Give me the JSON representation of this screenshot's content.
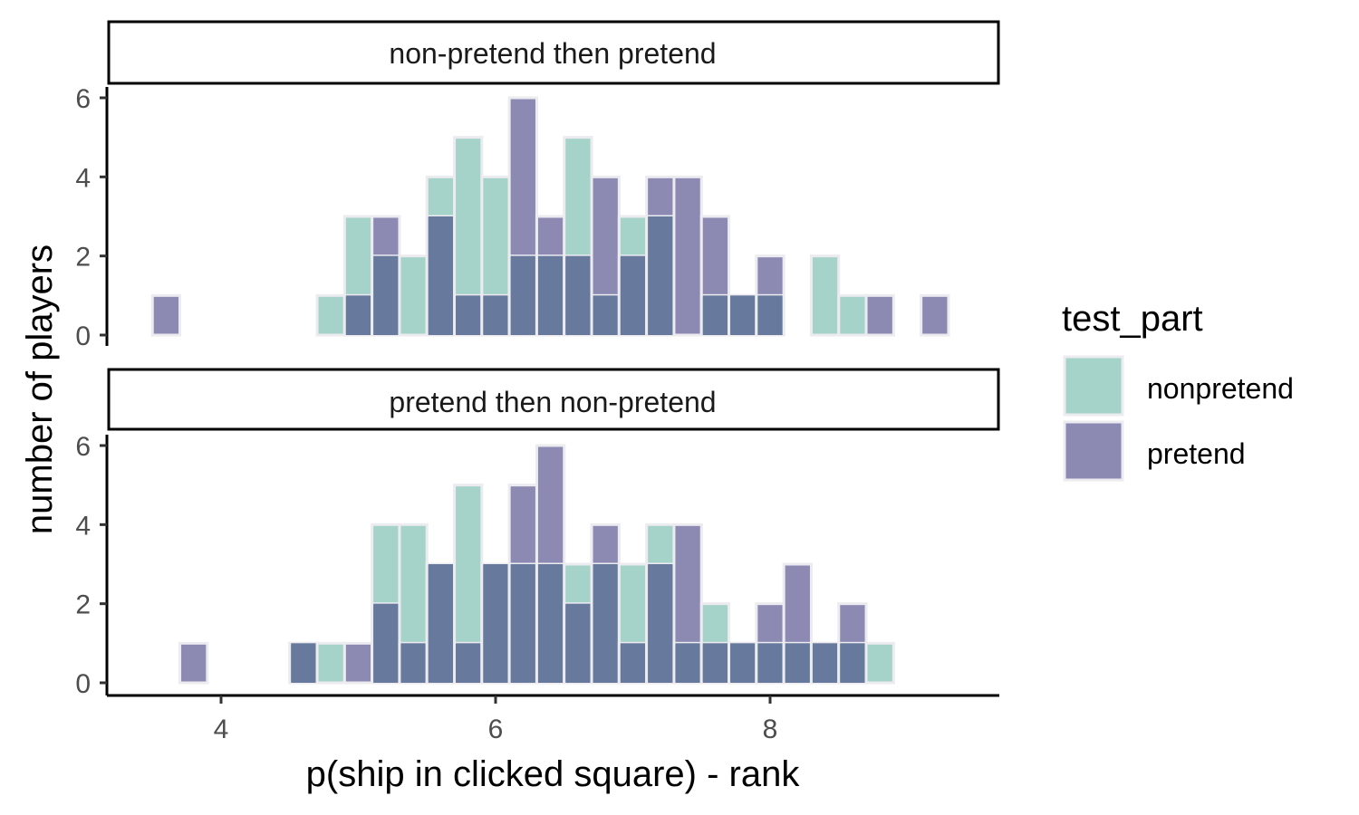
{
  "chart_data": {
    "type": "histogram",
    "xlabel": "p(ship in clicked square) - rank",
    "ylabel": "number of players",
    "xlim": [
      3.2,
      9.6
    ],
    "ylim": [
      0,
      6
    ],
    "x_ticks": [
      4,
      6,
      8
    ],
    "y_ticks": [
      0,
      2,
      4,
      6
    ],
    "bin_width": 0.2,
    "grid": false,
    "legend": {
      "title": "test_part",
      "position": "right",
      "entries": [
        {
          "label": "nonpretend",
          "color": "#a6d3c9"
        },
        {
          "label": "pretend",
          "color": "#8c8ab3"
        }
      ]
    },
    "colors": {
      "nonpretend": "#a6d3c9",
      "pretend": "#8c8ab3",
      "overlap": "#67799c",
      "bar_outline": "#ebebf0"
    },
    "panels": [
      {
        "strip": "non-pretend then pretend",
        "bins_x": [
          3.6,
          3.8,
          4.0,
          4.2,
          4.4,
          4.6,
          4.8,
          5.0,
          5.2,
          5.4,
          5.6,
          5.8,
          6.0,
          6.2,
          6.4,
          6.6,
          6.8,
          7.0,
          7.2,
          7.4,
          7.6,
          7.8,
          8.0,
          8.2,
          8.4,
          8.6,
          8.8,
          9.0,
          9.2
        ],
        "series": [
          {
            "name": "nonpretend",
            "values": [
              0,
              0,
              0,
              0,
              0,
              0,
              1,
              3,
              2,
              2,
              4,
              5,
              4,
              2,
              2,
              5,
              1,
              3,
              3,
              0,
              1,
              1,
              1,
              0,
              2,
              1,
              0,
              0,
              0
            ]
          },
          {
            "name": "pretend",
            "values": [
              1,
              0,
              0,
              0,
              0,
              0,
              0,
              1,
              3,
              0,
              3,
              1,
              1,
              6,
              3,
              2,
              4,
              2,
              4,
              4,
              3,
              1,
              2,
              0,
              0,
              0,
              1,
              0,
              1
            ]
          }
        ]
      },
      {
        "strip": "pretend then non-pretend",
        "bins_x": [
          3.6,
          3.8,
          4.0,
          4.2,
          4.4,
          4.6,
          4.8,
          5.0,
          5.2,
          5.4,
          5.6,
          5.8,
          6.0,
          6.2,
          6.4,
          6.6,
          6.8,
          7.0,
          7.2,
          7.4,
          7.6,
          7.8,
          8.0,
          8.2,
          8.4,
          8.6,
          8.8,
          9.0,
          9.2
        ],
        "series": [
          {
            "name": "nonpretend",
            "values": [
              0,
              0,
              0,
              0,
              0,
              1,
              1,
              0,
              4,
              4,
              3,
              5,
              3,
              3,
              3,
              3,
              3,
              3,
              4,
              1,
              2,
              1,
              1,
              1,
              1,
              1,
              1,
              0,
              0
            ]
          },
          {
            "name": "pretend",
            "values": [
              0,
              1,
              0,
              0,
              0,
              1,
              0,
              1,
              2,
              1,
              3,
              1,
              3,
              5,
              6,
              2,
              4,
              1,
              3,
              4,
              1,
              1,
              2,
              3,
              1,
              2,
              0,
              0,
              0
            ]
          }
        ]
      }
    ]
  }
}
